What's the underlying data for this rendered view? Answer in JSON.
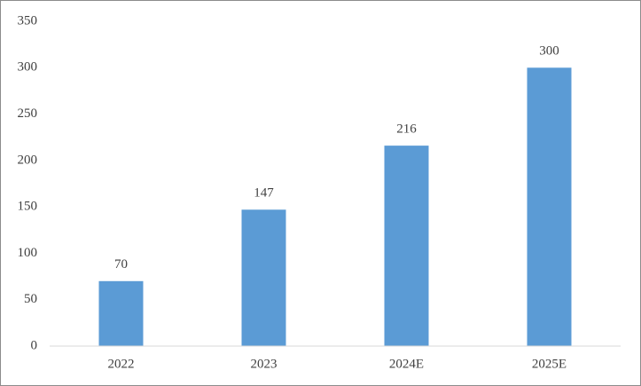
{
  "chart_data": {
    "type": "bar",
    "categories": [
      "2022",
      "2023",
      "2024E",
      "2025E"
    ],
    "values": [
      70,
      147,
      216,
      300
    ],
    "color": "#5b9bd5",
    "ylim": [
      0,
      350
    ],
    "yticks": [
      0,
      50,
      100,
      150,
      200,
      250,
      300,
      350
    ],
    "grid": false
  }
}
